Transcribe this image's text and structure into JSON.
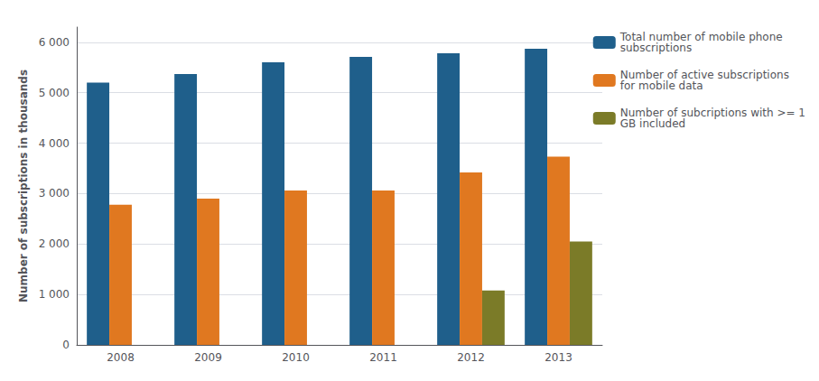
{
  "chart_data": {
    "type": "bar",
    "categories": [
      "2008",
      "2009",
      "2010",
      "2011",
      "2012",
      "2013"
    ],
    "series": [
      {
        "name": "Total number of mobile phone\nsubscriptions",
        "color": "#1F5F8B",
        "values": [
          5200,
          5370,
          5600,
          5710,
          5780,
          5870
        ]
      },
      {
        "name": "Number of active subscriptions\nfor mobile data",
        "color": "#E07820",
        "values": [
          2780,
          2900,
          3060,
          3060,
          3420,
          3730
        ]
      },
      {
        "name": "Number of subcriptions with >= 1\nGB included",
        "color": "#7B7B28",
        "values": [
          0,
          0,
          0,
          0,
          1080,
          2050
        ]
      }
    ],
    "ylabel": "Number of subscriptions in thousands",
    "ylim": [
      0,
      6300
    ],
    "yticks": [
      0,
      {
        "value": 1000,
        "label": "1 000"
      },
      {
        "value": 2000,
        "label": "2 000"
      },
      {
        "value": 3000,
        "label": "3 000"
      },
      {
        "value": 4000,
        "label": "4 000"
      },
      {
        "value": 5000,
        "label": "5 000"
      },
      {
        "value": 6000,
        "label": "6 000"
      }
    ],
    "grid": true,
    "legend": "right"
  }
}
